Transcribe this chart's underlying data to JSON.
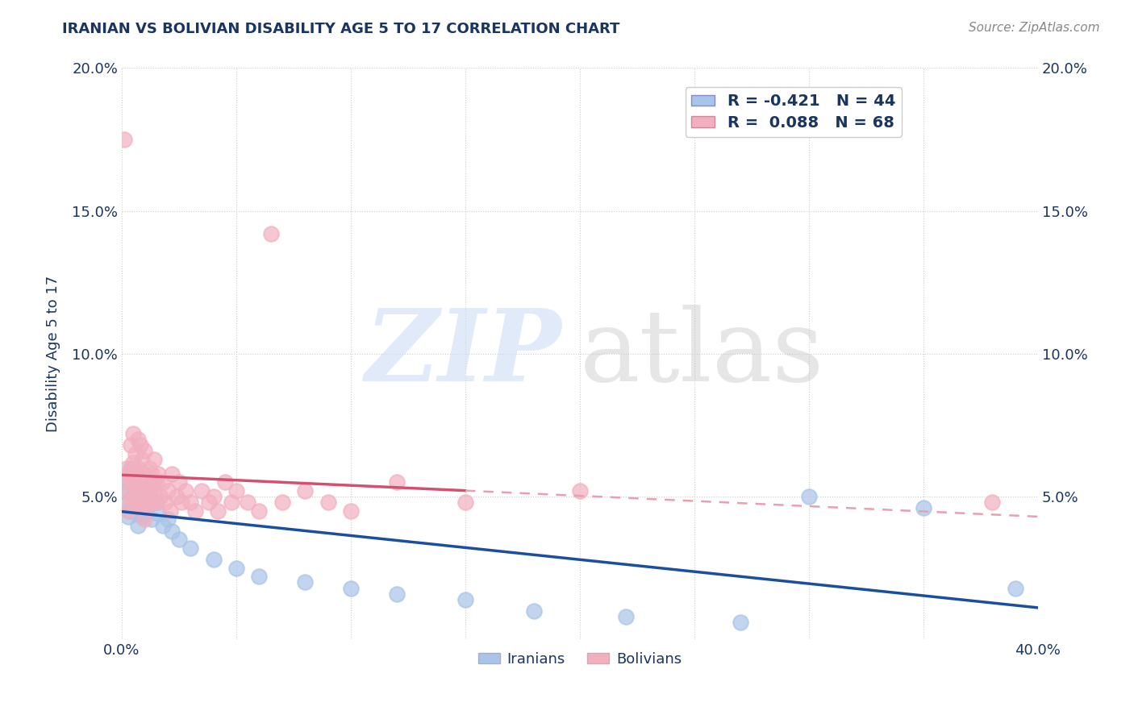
{
  "title": "IRANIAN VS BOLIVIAN DISABILITY AGE 5 TO 17 CORRELATION CHART",
  "source": "Source: ZipAtlas.com",
  "ylabel": "Disability Age 5 to 17",
  "xlim": [
    0.0,
    0.4
  ],
  "ylim": [
    0.0,
    0.2
  ],
  "iranians_R": -0.421,
  "iranians_N": 44,
  "bolivians_R": 0.088,
  "bolivians_N": 68,
  "iranian_color": "#a8c4e8",
  "bolivian_color": "#f2b0bf",
  "iranian_line_color": "#1a4fa0",
  "bolivian_line_color": "#d45070",
  "bolivian_dashed_color": "#e8a0b0",
  "background_color": "#ffffff",
  "grid_color": "#cccccc",
  "title_color": "#1a3560",
  "axis_color": "#1a3560",
  "iranians_x": [
    0.001,
    0.002,
    0.003,
    0.003,
    0.004,
    0.004,
    0.005,
    0.005,
    0.006,
    0.006,
    0.007,
    0.007,
    0.007,
    0.008,
    0.008,
    0.009,
    0.009,
    0.01,
    0.01,
    0.01,
    0.011,
    0.012,
    0.013,
    0.014,
    0.015,
    0.016,
    0.018,
    0.02,
    0.022,
    0.025,
    0.03,
    0.04,
    0.05,
    0.06,
    0.08,
    0.1,
    0.12,
    0.15,
    0.18,
    0.22,
    0.27,
    0.3,
    0.35,
    0.39
  ],
  "iranians_y": [
    0.052,
    0.048,
    0.055,
    0.043,
    0.06,
    0.045,
    0.05,
    0.058,
    0.046,
    0.052,
    0.048,
    0.055,
    0.04,
    0.053,
    0.047,
    0.051,
    0.043,
    0.057,
    0.049,
    0.044,
    0.046,
    0.05,
    0.042,
    0.055,
    0.048,
    0.044,
    0.04,
    0.042,
    0.038,
    0.035,
    0.032,
    0.028,
    0.025,
    0.022,
    0.02,
    0.018,
    0.016,
    0.014,
    0.01,
    0.008,
    0.006,
    0.05,
    0.046,
    0.018
  ],
  "bolivians_x": [
    0.001,
    0.002,
    0.002,
    0.003,
    0.003,
    0.004,
    0.004,
    0.004,
    0.005,
    0.005,
    0.005,
    0.006,
    0.006,
    0.006,
    0.007,
    0.007,
    0.007,
    0.008,
    0.008,
    0.008,
    0.009,
    0.009,
    0.009,
    0.01,
    0.01,
    0.01,
    0.01,
    0.011,
    0.011,
    0.012,
    0.012,
    0.013,
    0.013,
    0.014,
    0.014,
    0.015,
    0.015,
    0.016,
    0.017,
    0.018,
    0.019,
    0.02,
    0.021,
    0.022,
    0.024,
    0.025,
    0.026,
    0.028,
    0.03,
    0.032,
    0.035,
    0.038,
    0.04,
    0.042,
    0.045,
    0.048,
    0.05,
    0.055,
    0.06,
    0.065,
    0.07,
    0.08,
    0.09,
    0.1,
    0.12,
    0.15,
    0.2,
    0.38
  ],
  "bolivians_y": [
    0.175,
    0.06,
    0.052,
    0.058,
    0.045,
    0.068,
    0.055,
    0.048,
    0.072,
    0.062,
    0.05,
    0.065,
    0.055,
    0.048,
    0.07,
    0.06,
    0.052,
    0.068,
    0.058,
    0.048,
    0.063,
    0.055,
    0.047,
    0.066,
    0.058,
    0.05,
    0.042,
    0.055,
    0.047,
    0.06,
    0.052,
    0.058,
    0.048,
    0.063,
    0.052,
    0.055,
    0.048,
    0.058,
    0.05,
    0.055,
    0.048,
    0.052,
    0.045,
    0.058,
    0.05,
    0.055,
    0.048,
    0.052,
    0.048,
    0.045,
    0.052,
    0.048,
    0.05,
    0.045,
    0.055,
    0.048,
    0.052,
    0.048,
    0.045,
    0.142,
    0.048,
    0.052,
    0.048,
    0.045,
    0.055,
    0.048,
    0.052,
    0.048
  ]
}
